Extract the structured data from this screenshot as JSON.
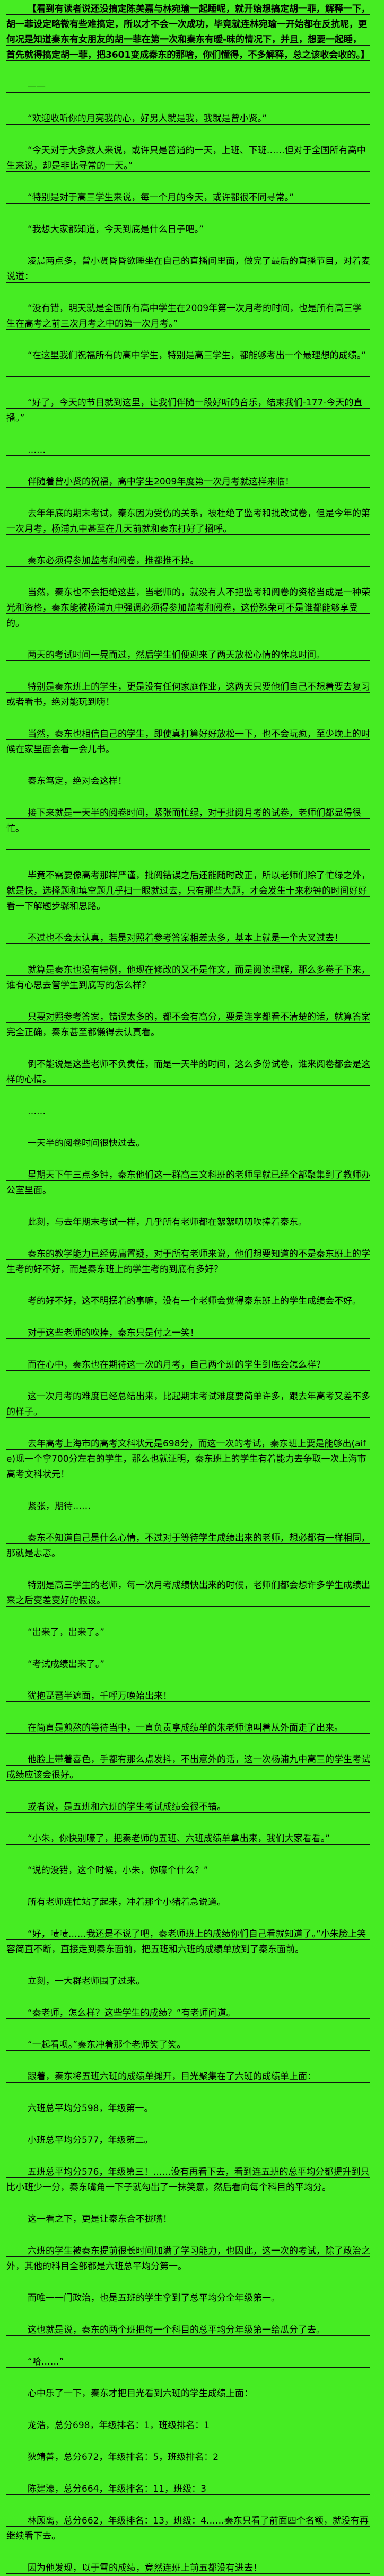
{
  "page": {
    "background_color": "#46ec23",
    "text_color": "#000000",
    "rule_line_color": "#101510"
  },
  "chapter": {
    "paragraphs": [
      {
        "text": "【看到有读者说还没搞定陈美嘉与林宛瑜一起睡呢，就开始想搞定胡一菲，解释一下，胡一菲设定略微有些难搞定，所以才不会一次成功，毕竟就连林宛瑜一开始都在反抗呢，更何况是知道秦东有女朋友的胡一菲在第一次和秦东有暧-昧的情况下，并且，想要一起睡，首先就得搞定胡一菲，把3601变成秦东的那啥，你们懂得，不多解释，总之该收会收的。】",
        "bold": true
      },
      {
        "text": "——"
      },
      {
        "text": "“欢迎收听你的月亮我的心，好男人就是我，我就是曾小贤。”"
      },
      {
        "text": "“今天对于大多数人来说，或许只是普通的一天，上班、下班……但对于全国所有高中生来说，却是非比寻常的一天。”"
      },
      {
        "text": "“特别是对于高三学生来说，每一个月的今天，或许都很不同寻常。”"
      },
      {
        "text": "“我想大家都知道，今天到底是什么日子吧。”"
      },
      {
        "text": "凌晨两点多，曾小贤昏昏欲睡坐在自己的直播间里面，做完了最后的直播节目，对着麦说道："
      },
      {
        "text": "“没有错，明天就是全国所有高中学生在2009年第一次月考的时间，也是所有高三学生在高考之前三次月考之中的第一次月考。”"
      },
      {
        "text": "“在这里我们祝福所有的高中学生，特别是高三学生，都能够考出一个最理想的成绩。”",
        "blank_line_after": true
      },
      {
        "text": "“好了，今天的节目就到这里，让我们伴随一段好听的音乐，结束我们-177-今天的直播。”"
      },
      {
        "text": "……"
      },
      {
        "text": "伴随着曾小贤的祝福，高中学生2009年度第一次月考就这样来临！"
      },
      {
        "text": "去年年底的期末考试，秦东因为受伤的关系，被杜绝了监考和批改试卷，但是今年的第一次月考，杨浦九中甚至在几天前就和秦东打好了招呼。"
      },
      {
        "text": "秦东必须得参加监考和阅卷，推都推不掉。"
      },
      {
        "text": "当然，秦东也不会拒绝这些，当老师的，就没有人不把监考和阅卷的资格当成是一种荣光和资格，秦东能被杨浦九中强调必须得参加监考和阅卷，这份殊荣可不是谁都能够享受的。"
      },
      {
        "text": "两天的考试时间一晃而过，然后学生们便迎来了两天放松心情的休息时间。"
      },
      {
        "text": "特别是秦东班上的学生，更是没有任何家庭作业，这两天只要他们自己不想着要去复习或者看书，绝对能玩到嗨！"
      },
      {
        "text": "当然，秦东也相信自己的学生，即使真打算好好放松一下，也不会玩疯，至少晚上的时候在家里面会看一会儿书。"
      },
      {
        "text": "秦东笃定，绝对会这样！"
      },
      {
        "text": "接下来就是一天半的阅卷时间，紧张而忙绿，对于批阅月考的试卷，老师们都显得很忙。",
        "blank_line_after": true
      },
      {
        "text": "毕竟不需要像高考那样严谨，批阅错误之后还能随时改正，所以老师们除了忙绿之外，就是快，选择题和填空题几乎扫一眼就过去，只有那些大题，才会发生十来秒钟的时间好好看一下解题步骤和思路。"
      },
      {
        "text": "不过也不会太认真，若是对照着参考答案相差太多，基本上就是一个大叉过去！"
      },
      {
        "text": "就算是秦东也没有特例，他现在修改的又不是作文，而是阅读理解，那么多卷子下来，谁有心思去管学生到底写的怎么样？"
      },
      {
        "text": "只要对照参考答案，错误太多的，都不会有高分，要是连字都看不清楚的话，就算答案完全正确，秦东甚至都懒得去认真看。"
      },
      {
        "text": "倒不能说是这些老师不负责任，而是一天半的时间，这么多份试卷，谁来阅卷都会是这样的心情。"
      },
      {
        "text": "……"
      },
      {
        "text": "一天半的阅卷时间很快过去。"
      },
      {
        "text": "星期天下午三点多钟，秦东他们这一群高三文科班的老师早就已经全部聚集到了教师办公室里面。"
      },
      {
        "text": "此刻，与去年期末考试一样，几乎所有老师都在絮絮叨叨吹捧着秦东。"
      },
      {
        "text": "秦东的教学能力已经毋庸置疑，对于所有老师来说，他们想要知道的不是秦东班上的学生考的好不好，而是秦东班上的学生考的到底有多好？"
      },
      {
        "text": "考的好不好，这不明摆着的事嘛，没有一个老师会觉得秦东班上的学生成绩会不好。"
      },
      {
        "text": "对于这些老师的吹捧，秦东只是付之一笑！"
      },
      {
        "text": "而在心中，秦东也在期待这一次的月考，自己两个班的学生到底会怎么样？"
      },
      {
        "text": "这一次月考的难度已经总结出来，比起期末考试难度要简单许多，跟去年高考又差不多的样子。"
      },
      {
        "text": "去年高考上海市的高考文科状元是698分，而这一次的考试，秦东班上要是能够出(aife)现一个拿700分左右的学生，那么也就证明，秦东班上的学生有着能力去争取一次上海市高考文科状元！"
      },
      {
        "text": "紧张，期待……"
      },
      {
        "text": "秦东不知道自己是什么心情，不过对于等待学生成绩出来的老师，想必都有一样相同，那就是忐忑。"
      },
      {
        "text": "特别是高三学生的老师，每一次月考成绩快出来的时候，老师们都会想许多学生成绩出来之后变差变好的假设。"
      },
      {
        "text": "“出来了，出来了。”"
      },
      {
        "text": "“考试成绩出来了。”"
      },
      {
        "text": "犹抱琵琶半遮面，千呼万唤始出来！"
      },
      {
        "text": "在简直是煎熬的等待当中，一直负责拿成绩单的朱老师惊叫着从外面走了出来。"
      },
      {
        "text": "他脸上带着喜色，手都有那么点发抖，不出意外的话，这一次杨浦九中高三的学生考试成绩应该会很好。"
      },
      {
        "text": "或者说，是五班和六班的学生考试成绩会很不错。"
      },
      {
        "text": "“小朱，你快别嚎了，把秦老师的五班、六班成绩单拿出来，我们大家看看。”"
      },
      {
        "text": "“说的没错，这个时候，小朱，你嚎个什么？”"
      },
      {
        "text": "所有老师连忙站了起来，冲着那个小猪着急说道。"
      },
      {
        "text": "“好，啧啧……我还是不说了吧，秦老师班上的成绩你们自己看就知道了。”小朱脸上笑容简直不断，直接走到秦东面前，把五班和六班的成绩单放到了秦东面前。"
      },
      {
        "text": "立刻，一大群老师围了过来。"
      },
      {
        "text": "“秦老师，怎么样？这些学生的成绩？”有老师问道。"
      },
      {
        "text": "“一起看呗。”秦东冲着那个老师笑了笑。"
      },
      {
        "text": "跟着，秦东将五班六班的成绩单摊开，目光聚集在了六班的成绩单上面："
      },
      {
        "text": "六班总平均分598，年级第一。"
      },
      {
        "text": "小班总平均分577，年级第二。"
      },
      {
        "text": "五班总平均分576，年级第三！……没有再看下去，看到连五班的总平均分都提升到只比小班少一分，秦东嘴角一下子就勾出了一抹笑意，然后看向每个科目的平均分。"
      },
      {
        "text": "这一看之下，更是让秦东合不拢嘴！"
      },
      {
        "text": "六班的学生被秦东提前很长时间加满了学习能力，也因此，这一次的考试，除了政治之外，其他的科目全部都是六班总平均分第一。"
      },
      {
        "text": "而唯一一门政治，也是五班的学生拿到了总平均分全年级第一。"
      },
      {
        "text": "这也就是说，秦东的两个班把每一个科目的总平均分年级第一给瓜分了去。"
      },
      {
        "text": "“哈……”"
      },
      {
        "text": "心中乐了一下，秦东才把目光看到六班的学生成绩上面："
      },
      {
        "text": "龙浩，总分698，年级排名：1，班级排名：1"
      },
      {
        "text": "狄靖善，总分672，年级排名：5，班级排名：2"
      },
      {
        "text": "陈建濠，总分664，年级排名：11，班级：3"
      },
      {
        "text": "林顾离，总分662，年级排名：13，班级：4……秦东只看了前面四个名额，就没有再继续看下去。"
      },
      {
        "text": "因为他发现，以于雪的成绩，竟然连班上前五都没有进去！"
      }
    ]
  }
}
